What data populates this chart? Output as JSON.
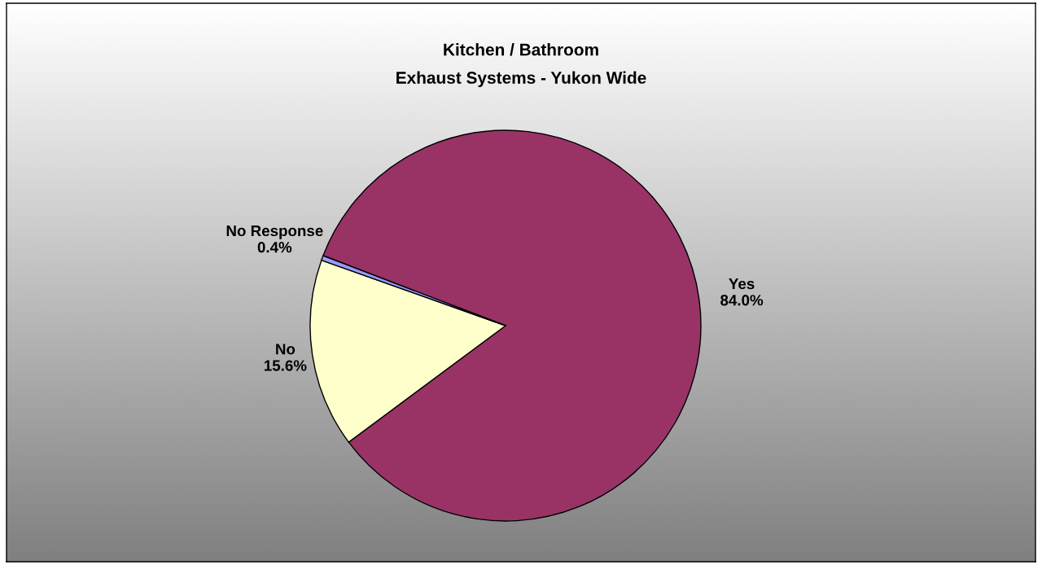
{
  "chart_data": {
    "type": "pie",
    "title": "Kitchen / Bathroom\nExhaust Systems - Yukon Wide",
    "categories": [
      "Yes",
      "No",
      "No Response"
    ],
    "values": [
      84.0,
      15.6,
      0.4
    ],
    "value_labels": [
      "84.0%",
      "15.6%",
      "0.4%"
    ],
    "colors": [
      "#993366",
      "#ffffcc",
      "#9999ff"
    ],
    "legend": false
  }
}
